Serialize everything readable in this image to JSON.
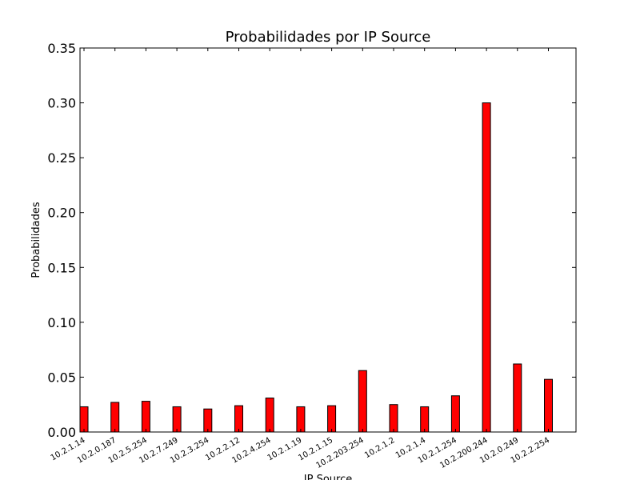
{
  "chart_data": {
    "type": "bar",
    "title": "Probabilidades por IP Source",
    "xlabel": "IP Source",
    "ylabel": "Probabilidades",
    "ylim": [
      0,
      0.35
    ],
    "yticks": [
      "0.00",
      "0.05",
      "0.10",
      "0.15",
      "0.20",
      "0.25",
      "0.30",
      "0.35"
    ],
    "ytick_values": [
      0,
      0.05,
      0.1,
      0.15,
      0.2,
      0.25,
      0.3,
      0.35
    ],
    "categories": [
      "10.2.1.14",
      "10.2.0.187",
      "10.2.5.254",
      "10.2.7.249",
      "10.2.3.254",
      "10.2.2.12",
      "10.2.4.254",
      "10.2.1.19",
      "10.2.1.15",
      "10.2.203.254",
      "10.2.1.2",
      "10.2.1.4",
      "10.2.1.254",
      "10.2.200.244",
      "10.2.0.249",
      "10.2.2.254"
    ],
    "values": [
      0.023,
      0.027,
      0.028,
      0.023,
      0.021,
      0.024,
      0.031,
      0.023,
      0.024,
      0.056,
      0.025,
      0.023,
      0.033,
      0.3,
      0.062,
      0.048
    ],
    "bar_color": "#ff0000",
    "edge_color": "#000000",
    "grid": false
  }
}
